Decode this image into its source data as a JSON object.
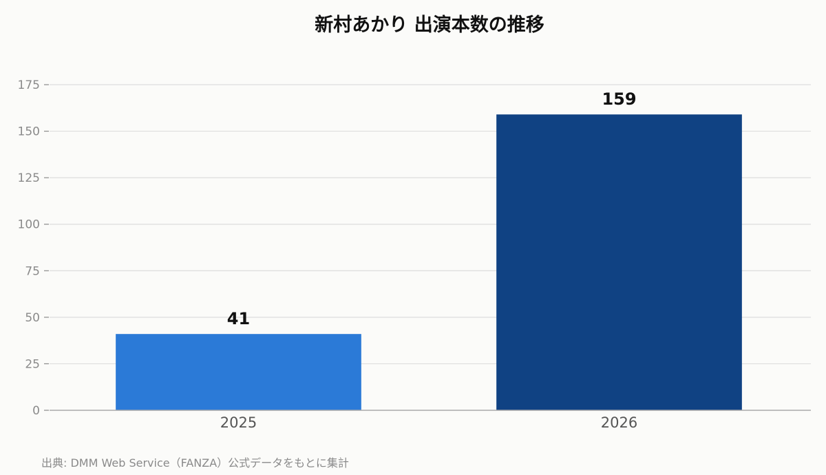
{
  "chart_data": {
    "type": "bar",
    "title": "新村あかり 出演本数の推移",
    "categories": [
      "2025",
      "2026"
    ],
    "values": [
      41,
      159
    ],
    "colors": [
      "#2b7ad7",
      "#104283"
    ],
    "xlabel": "",
    "ylabel": "",
    "ylim": [
      0,
      175
    ],
    "yticks": [
      0,
      25,
      50,
      75,
      100,
      125,
      150,
      175
    ],
    "grid": true,
    "data_labels": [
      "41",
      "159"
    ]
  },
  "source_note": "出典: DMM Web Service（FANZA）公式データをもとに集計",
  "colors": {
    "grid": "#dddddd",
    "axis": "#aaaaaa",
    "tick_label": "#8a8a8a",
    "category_label": "#555555",
    "background": "#fbfbf9"
  }
}
